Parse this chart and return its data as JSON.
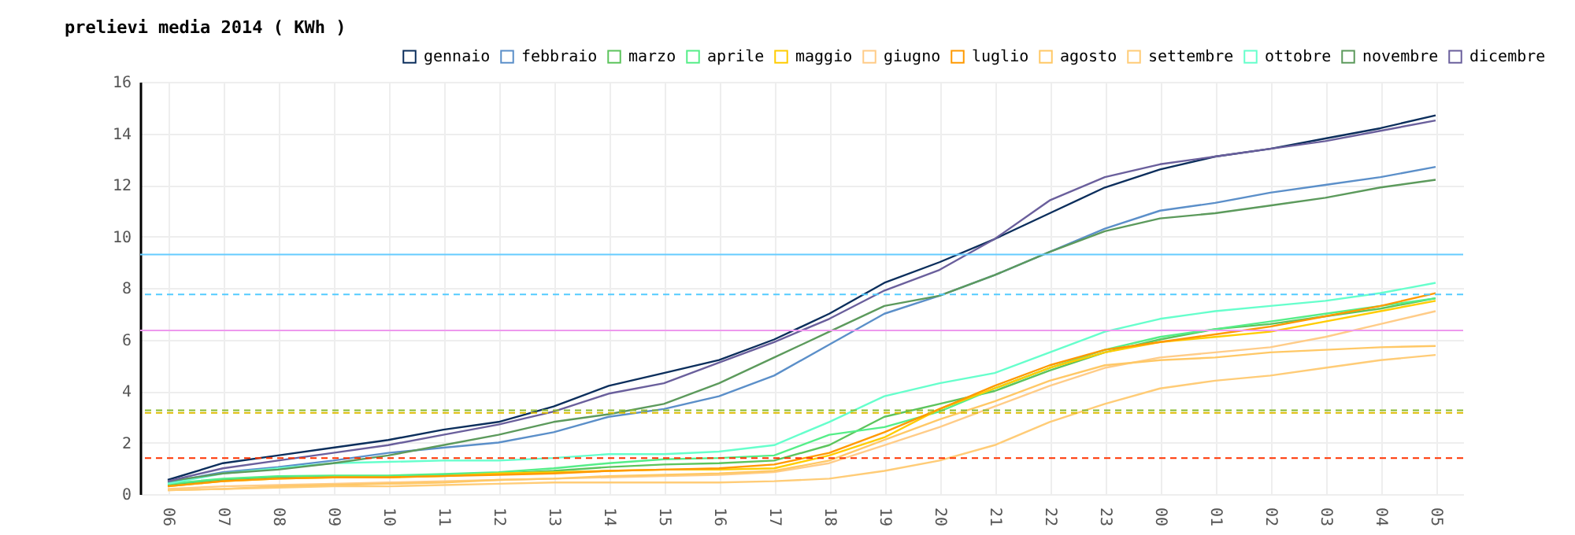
{
  "chart_data": {
    "type": "line",
    "title": "prelievi media 2014 ( KWh )",
    "categories": [
      "06",
      "07",
      "08",
      "09",
      "10",
      "11",
      "12",
      "13",
      "14",
      "15",
      "16",
      "17",
      "18",
      "19",
      "20",
      "21",
      "22",
      "23",
      "00",
      "01",
      "02",
      "03",
      "04",
      "05"
    ],
    "series": [
      {
        "name": "gennaio",
        "color": "#0b2e5c",
        "values": [
          0.55,
          1.2,
          1.5,
          1.8,
          2.1,
          2.5,
          2.8,
          3.4,
          4.2,
          4.7,
          5.2,
          6.0,
          7.0,
          8.2,
          9.0,
          9.9,
          10.9,
          11.9,
          12.6,
          13.1,
          13.4,
          13.8,
          14.2,
          14.7
        ]
      },
      {
        "name": "febbraio",
        "color": "#5b8fc9",
        "values": [
          0.45,
          0.85,
          1.05,
          1.3,
          1.6,
          1.8,
          2.0,
          2.4,
          3.0,
          3.3,
          3.8,
          4.6,
          5.8,
          7.0,
          7.7,
          8.5,
          9.4,
          10.3,
          11.0,
          11.3,
          11.7,
          12.0,
          12.3,
          12.7
        ]
      },
      {
        "name": "marzo",
        "color": "#5cc45c",
        "values": [
          0.35,
          0.55,
          0.65,
          0.7,
          0.7,
          0.75,
          0.8,
          0.9,
          1.05,
          1.15,
          1.2,
          1.3,
          1.9,
          3.0,
          3.5,
          4.0,
          4.8,
          5.5,
          6.0,
          6.4,
          6.6,
          6.9,
          7.2,
          7.6
        ]
      },
      {
        "name": "aprile",
        "color": "#55ee88",
        "values": [
          0.4,
          0.6,
          0.7,
          0.72,
          0.72,
          0.78,
          0.85,
          1.0,
          1.2,
          1.35,
          1.4,
          1.5,
          2.3,
          2.6,
          3.2,
          4.1,
          4.9,
          5.6,
          6.1,
          6.4,
          6.7,
          7.0,
          7.3,
          7.6
        ]
      },
      {
        "name": "maggio",
        "color": "#ffcc00",
        "values": [
          0.3,
          0.5,
          0.6,
          0.65,
          0.65,
          0.7,
          0.8,
          0.85,
          0.9,
          0.95,
          0.95,
          1.0,
          1.5,
          2.2,
          3.3,
          4.1,
          4.9,
          5.5,
          5.9,
          6.1,
          6.3,
          6.7,
          7.1,
          7.5
        ]
      },
      {
        "name": "giugno",
        "color": "#ffcc88",
        "values": [
          0.2,
          0.3,
          0.35,
          0.4,
          0.45,
          0.5,
          0.55,
          0.6,
          0.65,
          0.7,
          0.75,
          0.85,
          1.2,
          1.9,
          2.6,
          3.4,
          4.2,
          4.9,
          5.3,
          5.5,
          5.7,
          6.1,
          6.6,
          7.1
        ]
      },
      {
        "name": "luglio",
        "color": "#ff9900",
        "values": [
          0.3,
          0.5,
          0.6,
          0.65,
          0.65,
          0.7,
          0.75,
          0.8,
          0.9,
          0.95,
          1.0,
          1.15,
          1.6,
          2.4,
          3.3,
          4.2,
          5.0,
          5.6,
          5.9,
          6.2,
          6.5,
          6.9,
          7.3,
          7.8
        ]
      },
      {
        "name": "agosto",
        "color": "#ffc866",
        "values": [
          0.15,
          0.2,
          0.3,
          0.35,
          0.4,
          0.45,
          0.55,
          0.6,
          0.7,
          0.75,
          0.8,
          0.9,
          1.3,
          2.1,
          2.9,
          3.6,
          4.4,
          5.0,
          5.2,
          5.3,
          5.5,
          5.6,
          5.7,
          5.75
        ]
      },
      {
        "name": "settembre",
        "color": "#ffcc77",
        "values": [
          0.15,
          0.2,
          0.25,
          0.3,
          0.3,
          0.35,
          0.4,
          0.45,
          0.45,
          0.45,
          0.45,
          0.5,
          0.6,
          0.9,
          1.3,
          1.9,
          2.8,
          3.5,
          4.1,
          4.4,
          4.6,
          4.9,
          5.2,
          5.4
        ]
      },
      {
        "name": "ottobre",
        "color": "#66ffcc",
        "values": [
          0.4,
          0.8,
          1.0,
          1.2,
          1.25,
          1.3,
          1.3,
          1.4,
          1.55,
          1.55,
          1.65,
          1.9,
          2.8,
          3.8,
          4.3,
          4.7,
          5.5,
          6.3,
          6.8,
          7.1,
          7.3,
          7.5,
          7.8,
          8.2
        ]
      },
      {
        "name": "novembre",
        "color": "#5c9a5c",
        "values": [
          0.5,
          0.8,
          0.95,
          1.2,
          1.5,
          1.9,
          2.3,
          2.8,
          3.1,
          3.5,
          4.3,
          5.3,
          6.3,
          7.3,
          7.7,
          8.5,
          9.4,
          10.2,
          10.7,
          10.9,
          11.2,
          11.5,
          11.9,
          12.2
        ]
      },
      {
        "name": "dicembre",
        "color": "#6a5f9c",
        "values": [
          0.5,
          1.0,
          1.3,
          1.6,
          1.9,
          2.3,
          2.7,
          3.2,
          3.9,
          4.3,
          5.1,
          5.9,
          6.8,
          7.9,
          8.7,
          9.9,
          11.4,
          12.3,
          12.8,
          13.1,
          13.4,
          13.7,
          14.1,
          14.5
        ]
      }
    ],
    "ylim": [
      0,
      16
    ],
    "yticks": [
      0,
      2,
      4,
      6,
      8,
      10,
      12,
      14,
      16
    ],
    "grid": true,
    "legend": "top right",
    "ref_lines": [
      {
        "axis": "y",
        "value": 9.3,
        "color": "#66ccff",
        "line_style": "solid"
      },
      {
        "axis": "y",
        "value": 7.75,
        "color": "#55ccff",
        "line_style": "dashed"
      },
      {
        "axis": "y",
        "value": 6.35,
        "color": "#ee99ee",
        "line_style": "solid"
      },
      {
        "axis": "y",
        "value": 3.25,
        "color": "#88bb33",
        "line_style": "dashed"
      },
      {
        "axis": "y",
        "value": 3.15,
        "color": "#ddbb00",
        "line_style": "dashed"
      },
      {
        "axis": "y",
        "value": 1.4,
        "color": "#ff3300",
        "line_style": "dashed"
      }
    ]
  }
}
